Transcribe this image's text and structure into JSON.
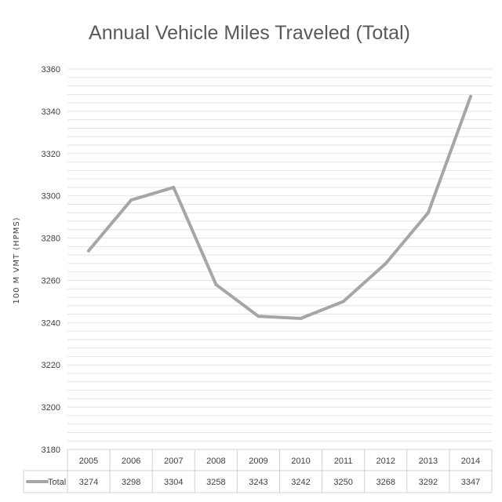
{
  "chart_data": {
    "type": "line",
    "title": "Annual Vehicle Miles Traveled (Total)",
    "ylabel": "100 M VMT (HPMS)",
    "xlabel": "",
    "categories": [
      "2005",
      "2006",
      "2007",
      "2008",
      "2009",
      "2010",
      "2011",
      "2012",
      "2013",
      "2014"
    ],
    "series": [
      {
        "name": "Total",
        "values": [
          3274,
          3298,
          3304,
          3258,
          3243,
          3242,
          3250,
          3268,
          3292,
          3347
        ],
        "color": "#a6a6a6"
      }
    ],
    "ylim": [
      3180,
      3360
    ],
    "yticks": [
      "3360",
      "3340",
      "3320",
      "3300",
      "3280",
      "3260",
      "3240",
      "3220",
      "3200",
      "3180"
    ],
    "grid": true,
    "data_table": true
  }
}
